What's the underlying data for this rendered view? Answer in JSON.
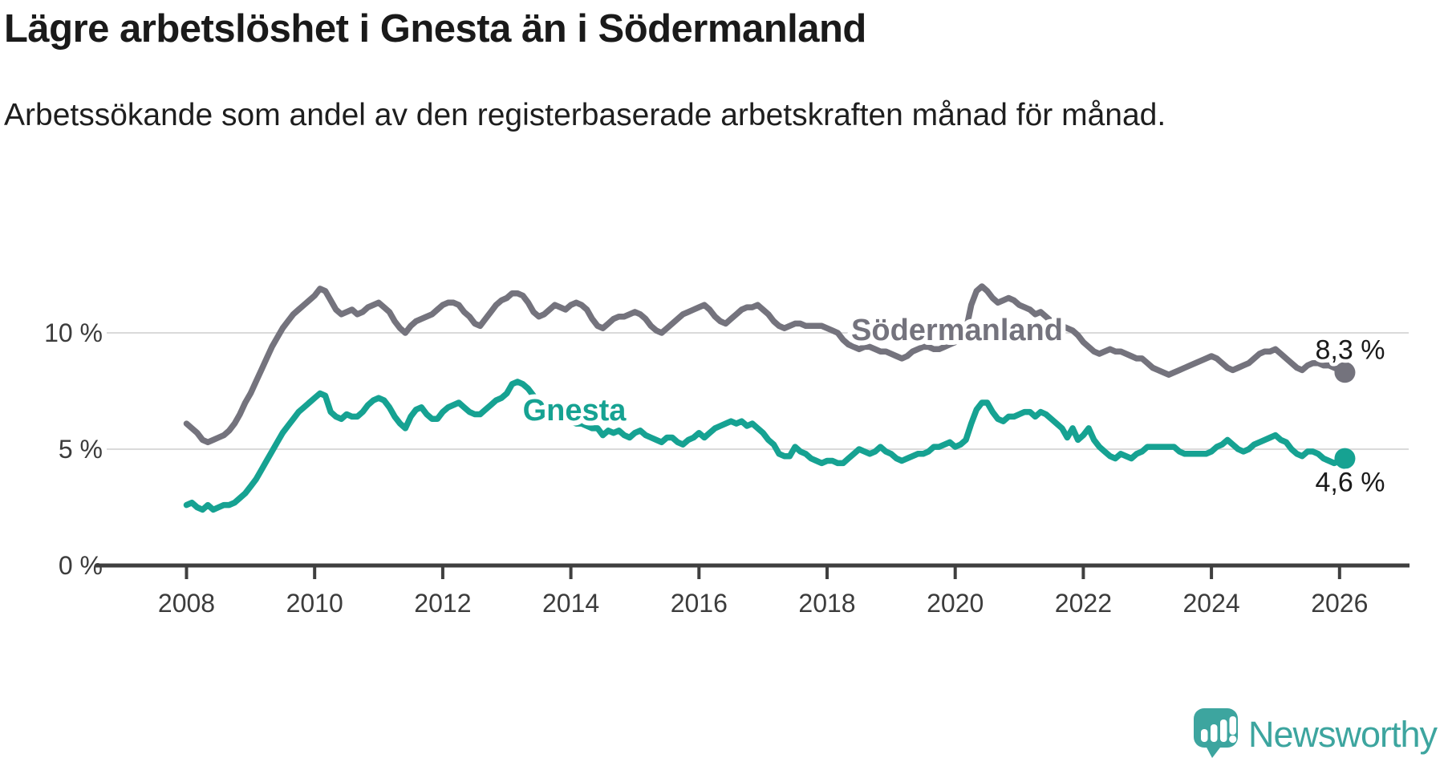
{
  "header": {
    "title": "Lägre arbetslöshet i Gnesta än i Södermanland",
    "subtitle": "Arbetssökande som andel av den registerbaserade arbetskraften månad för månad."
  },
  "branding": {
    "logo_text": "Newsworthy",
    "logo_color": "#3da59f"
  },
  "colors": {
    "soedermanland_line": "#74737d",
    "gnesta_line": "#16a292",
    "axis": "#3f3f3f",
    "grid": "#dadada",
    "text": "#1a1a1a",
    "tick_label": "#3c3c3c"
  },
  "chart_data": {
    "type": "line",
    "title": "Lägre arbetslöshet i Gnesta än i Södermanland",
    "x_start_year": 2008,
    "x_start_month": 1,
    "x_end_year": 2026,
    "x_end_month": 2,
    "x_tick_years": [
      2008,
      2010,
      2012,
      2014,
      2016,
      2018,
      2020,
      2022,
      2024,
      2026
    ],
    "y_ticks": [
      {
        "value": 0,
        "label": "0 %"
      },
      {
        "value": 5,
        "label": "5 %"
      },
      {
        "value": 10,
        "label": "10 %"
      }
    ],
    "ylim": [
      0,
      12.6
    ],
    "grid": true,
    "legend": "inline-labels",
    "series": [
      {
        "name": "Södermanland",
        "color": "#74737d",
        "end_label": "8,3 %",
        "values": [
          6.1,
          5.9,
          5.7,
          5.4,
          5.3,
          5.4,
          5.5,
          5.6,
          5.8,
          6.1,
          6.5,
          7.0,
          7.4,
          7.9,
          8.4,
          8.9,
          9.4,
          9.8,
          10.2,
          10.5,
          10.8,
          11.0,
          11.2,
          11.4,
          11.6,
          11.9,
          11.8,
          11.4,
          11.0,
          10.8,
          10.9,
          11.0,
          10.8,
          10.9,
          11.1,
          11.2,
          11.3,
          11.1,
          10.9,
          10.5,
          10.2,
          10.0,
          10.3,
          10.5,
          10.6,
          10.7,
          10.8,
          11.0,
          11.2,
          11.3,
          11.3,
          11.2,
          10.9,
          10.7,
          10.4,
          10.3,
          10.6,
          10.9,
          11.2,
          11.4,
          11.5,
          11.7,
          11.7,
          11.6,
          11.3,
          10.9,
          10.7,
          10.8,
          11.0,
          11.2,
          11.1,
          11.0,
          11.2,
          11.3,
          11.2,
          11.0,
          10.6,
          10.3,
          10.2,
          10.4,
          10.6,
          10.7,
          10.7,
          10.8,
          10.9,
          10.8,
          10.6,
          10.3,
          10.1,
          10.0,
          10.2,
          10.4,
          10.6,
          10.8,
          10.9,
          11.0,
          11.1,
          11.2,
          11.0,
          10.7,
          10.5,
          10.4,
          10.6,
          10.8,
          11.0,
          11.1,
          11.1,
          11.2,
          11.0,
          10.8,
          10.5,
          10.3,
          10.2,
          10.3,
          10.4,
          10.4,
          10.3,
          10.3,
          10.3,
          10.3,
          10.2,
          10.1,
          10.0,
          9.7,
          9.5,
          9.4,
          9.3,
          9.4,
          9.4,
          9.3,
          9.2,
          9.2,
          9.1,
          9.0,
          8.9,
          9.0,
          9.2,
          9.3,
          9.4,
          9.4,
          9.3,
          9.3,
          9.4,
          9.5,
          9.6,
          9.7,
          10.1,
          11.2,
          11.8,
          12.0,
          11.8,
          11.5,
          11.3,
          11.4,
          11.5,
          11.4,
          11.2,
          11.1,
          11.0,
          10.8,
          10.9,
          10.7,
          10.5,
          10.4,
          10.3,
          10.2,
          10.1,
          9.9,
          9.6,
          9.4,
          9.2,
          9.1,
          9.2,
          9.3,
          9.2,
          9.2,
          9.1,
          9.0,
          8.9,
          8.9,
          8.7,
          8.5,
          8.4,
          8.3,
          8.2,
          8.3,
          8.4,
          8.5,
          8.6,
          8.7,
          8.8,
          8.9,
          9.0,
          8.9,
          8.7,
          8.5,
          8.4,
          8.5,
          8.6,
          8.7,
          8.9,
          9.1,
          9.2,
          9.2,
          9.3,
          9.1,
          8.9,
          8.7,
          8.5,
          8.4,
          8.6,
          8.7,
          8.7,
          8.6,
          8.6,
          8.5,
          8.4,
          8.3
        ]
      },
      {
        "name": "Gnesta",
        "color": "#16a292",
        "end_label": "4,6 %",
        "values": [
          2.6,
          2.7,
          2.5,
          2.4,
          2.6,
          2.4,
          2.5,
          2.6,
          2.6,
          2.7,
          2.9,
          3.1,
          3.4,
          3.7,
          4.1,
          4.5,
          4.9,
          5.3,
          5.7,
          6.0,
          6.3,
          6.6,
          6.8,
          7.0,
          7.2,
          7.4,
          7.3,
          6.6,
          6.4,
          6.3,
          6.5,
          6.4,
          6.4,
          6.6,
          6.9,
          7.1,
          7.2,
          7.1,
          6.8,
          6.4,
          6.1,
          5.9,
          6.4,
          6.7,
          6.8,
          6.5,
          6.3,
          6.3,
          6.6,
          6.8,
          6.9,
          7.0,
          6.8,
          6.6,
          6.5,
          6.5,
          6.7,
          6.9,
          7.1,
          7.2,
          7.4,
          7.8,
          7.9,
          7.8,
          7.6,
          7.3,
          7.0,
          6.8,
          6.6,
          6.5,
          6.4,
          6.3,
          6.2,
          6.1,
          6.1,
          6.0,
          5.9,
          5.9,
          5.6,
          5.8,
          5.7,
          5.8,
          5.6,
          5.5,
          5.7,
          5.8,
          5.6,
          5.5,
          5.4,
          5.3,
          5.5,
          5.5,
          5.3,
          5.2,
          5.4,
          5.5,
          5.7,
          5.5,
          5.7,
          5.9,
          6.0,
          6.1,
          6.2,
          6.1,
          6.2,
          6.0,
          6.1,
          5.9,
          5.7,
          5.4,
          5.2,
          4.8,
          4.7,
          4.7,
          5.1,
          4.9,
          4.8,
          4.6,
          4.5,
          4.4,
          4.5,
          4.5,
          4.4,
          4.4,
          4.6,
          4.8,
          5.0,
          4.9,
          4.8,
          4.9,
          5.1,
          4.9,
          4.8,
          4.6,
          4.5,
          4.6,
          4.7,
          4.8,
          4.8,
          4.9,
          5.1,
          5.1,
          5.2,
          5.3,
          5.1,
          5.2,
          5.4,
          6.1,
          6.7,
          7.0,
          7.0,
          6.6,
          6.3,
          6.2,
          6.4,
          6.4,
          6.5,
          6.6,
          6.6,
          6.4,
          6.6,
          6.5,
          6.3,
          6.1,
          5.9,
          5.5,
          5.9,
          5.4,
          5.6,
          5.9,
          5.4,
          5.1,
          4.9,
          4.7,
          4.6,
          4.8,
          4.7,
          4.6,
          4.8,
          4.9,
          5.1,
          5.1,
          5.1,
          5.1,
          5.1,
          5.1,
          4.9,
          4.8,
          4.8,
          4.8,
          4.8,
          4.8,
          4.9,
          5.1,
          5.2,
          5.4,
          5.2,
          5.0,
          4.9,
          5.0,
          5.2,
          5.3,
          5.4,
          5.5,
          5.6,
          5.4,
          5.3,
          5.0,
          4.8,
          4.7,
          4.9,
          4.9,
          4.8,
          4.6,
          4.5,
          4.4,
          4.5,
          4.6
        ]
      }
    ]
  }
}
